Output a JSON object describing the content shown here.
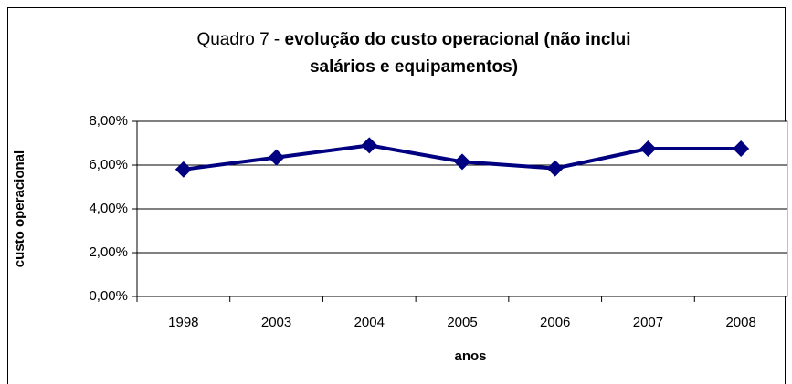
{
  "chart_data": {
    "type": "line",
    "title_prefix": "Quadro 7 -",
    "title_lines": [
      "evolução do custo operacional (não inclui",
      "salários e equipamentos)"
    ],
    "x_label": "anos",
    "y_label": "custo operacional",
    "categories": [
      "1998",
      "2003",
      "2004",
      "2005",
      "2006",
      "2007",
      "2008"
    ],
    "series": [
      {
        "name": "custo operacional",
        "color": "#000080",
        "values": [
          5.8,
          6.35,
          6.9,
          6.15,
          5.85,
          6.75,
          6.75
        ]
      }
    ],
    "ylim": [
      0,
      8
    ],
    "yticks": [
      {
        "value": 0,
        "label": "0,00%"
      },
      {
        "value": 2,
        "label": "2,00%"
      },
      {
        "value": 4,
        "label": "4,00%"
      },
      {
        "value": 6,
        "label": "6,00%"
      },
      {
        "value": 8,
        "label": "8,00%"
      }
    ],
    "grid": true
  }
}
